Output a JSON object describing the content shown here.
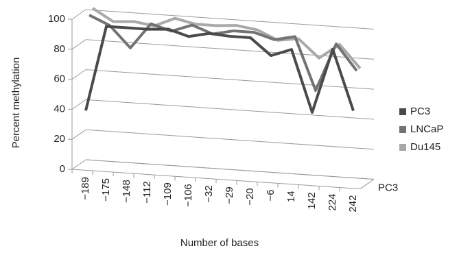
{
  "chart_data": {
    "type": "line3d",
    "y_label": "Percent methylation",
    "x_label": "Number of bases",
    "categories": [
      "−189",
      "−175",
      "−148",
      "−112",
      "−109",
      "−106",
      "−32",
      "−29",
      "−20",
      "−6",
      "14",
      "142",
      "224",
      "242"
    ],
    "depth_categories": [
      "PC3"
    ],
    "series": [
      {
        "name": "PC3",
        "color": "#4a4a4a",
        "values": [
          38,
          95,
          95,
          95,
          96,
          92,
          95,
          94,
          94,
          83,
          88,
          47,
          90,
          50
        ]
      },
      {
        "name": "LNCaP",
        "color": "#737373",
        "values": [
          100,
          94,
          80,
          97,
          93,
          98,
          93,
          96,
          96,
          92,
          95,
          60,
          92,
          75
        ]
      },
      {
        "name": "Du145",
        "color": "#a9a9a9",
        "values": [
          103,
          95,
          96,
          94,
          100,
          97,
          97,
          98,
          96,
          90,
          92,
          80,
          90,
          75
        ]
      }
    ],
    "ylim": [
      0,
      100
    ],
    "yticks": [
      0,
      20,
      40,
      60,
      80,
      100
    ],
    "grid": true,
    "legend": "right"
  }
}
